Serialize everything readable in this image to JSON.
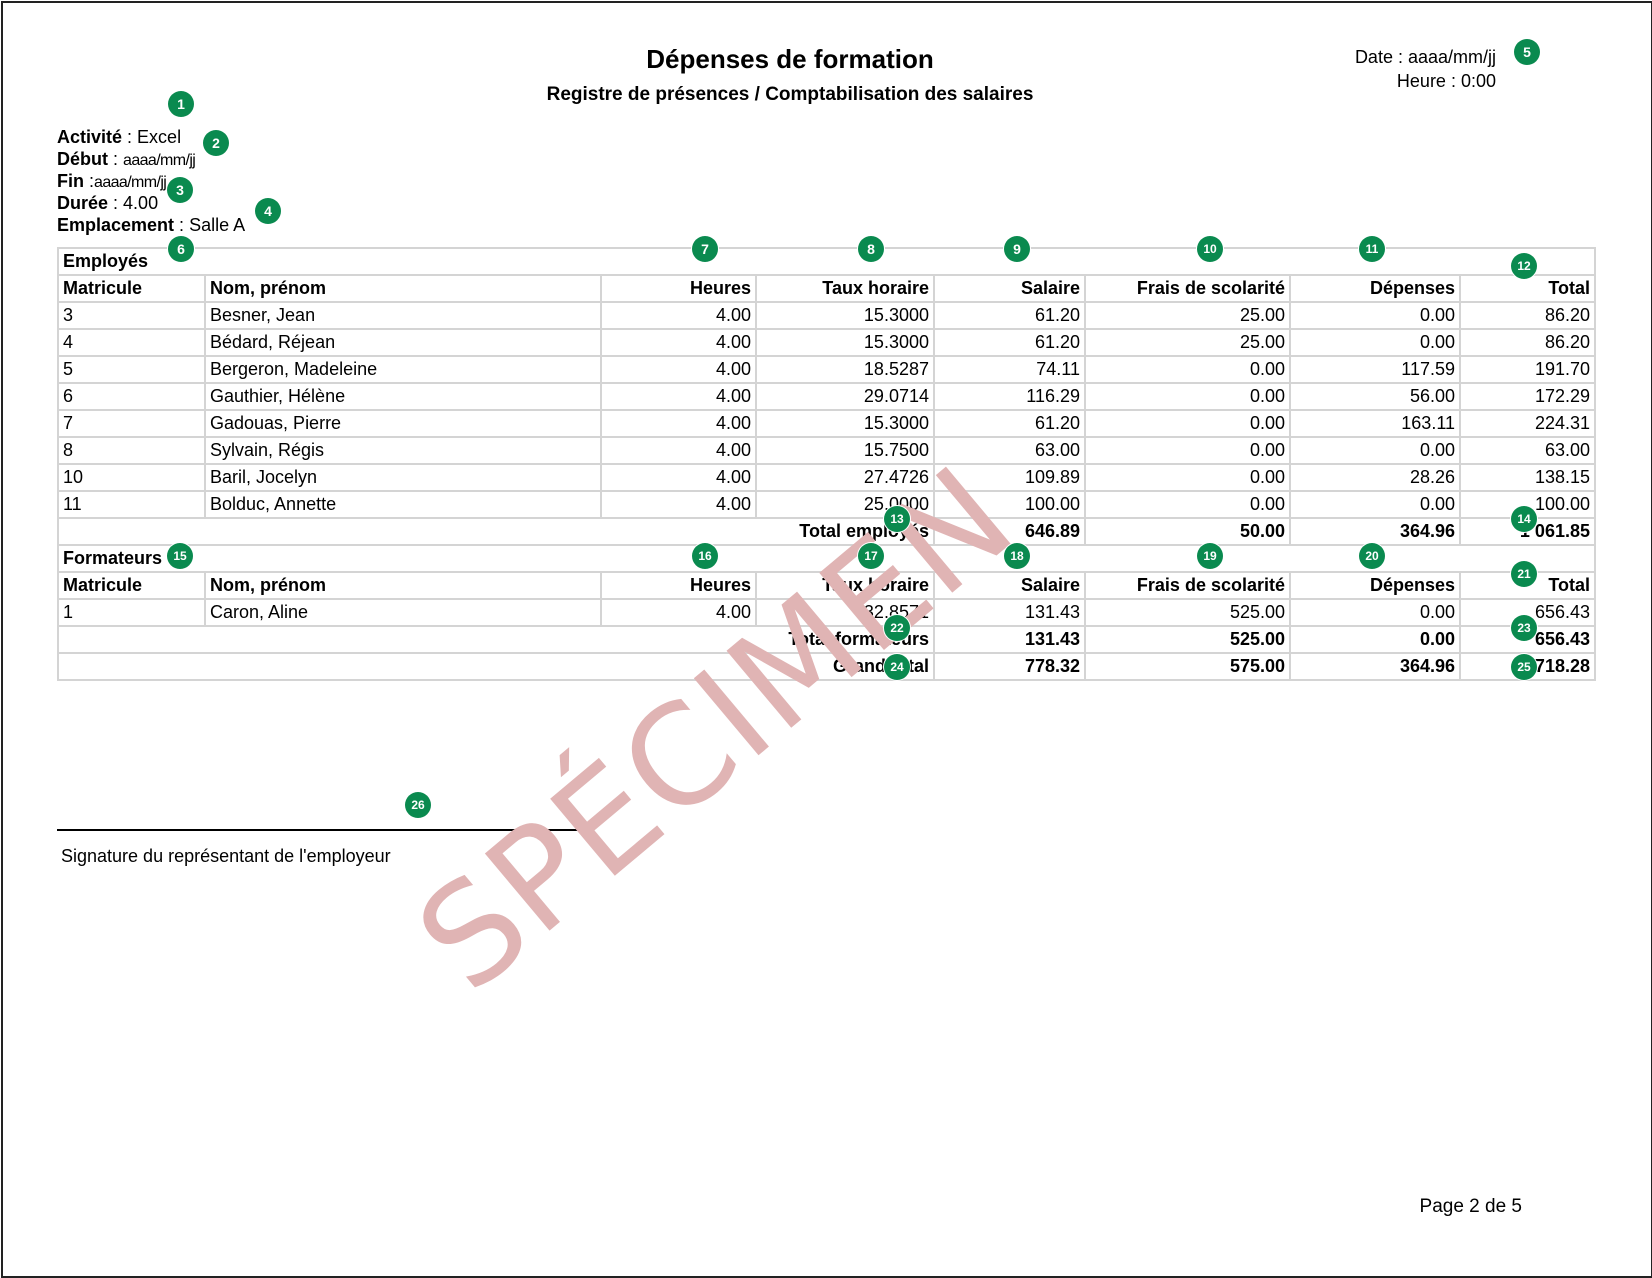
{
  "header": {
    "title": "Dépenses de formation",
    "subtitle": "Registre de présences / Comptabilisation des salaires",
    "date_label": "Date : ",
    "date_value": "aaaa/mm/jj",
    "time_label": "Heure : ",
    "time_value": "0:00"
  },
  "activity": {
    "activite_label": "Activité",
    "activite_value": "Excel",
    "debut_label": "Début",
    "debut_value": "aaaa/mm/jj",
    "fin_label": "Fin",
    "fin_value": "aaaa/mm/jj",
    "duree_label": "Durée",
    "duree_value": "4.00",
    "emplacement_label": "Emplacement",
    "emplacement_value": "Salle A"
  },
  "columns": [
    "Matricule",
    "Nom, prénom",
    "Heures",
    "Taux horaire",
    "Salaire",
    "Frais de scolarité",
    "Dépenses",
    "Total"
  ],
  "employes": {
    "section_label": "Employés",
    "rows": [
      [
        "3",
        "Besner, Jean",
        "4.00",
        "15.3000",
        "61.20",
        "25.00",
        "0.00",
        "86.20"
      ],
      [
        "4",
        "Bédard, Réjean",
        "4.00",
        "15.3000",
        "61.20",
        "25.00",
        "0.00",
        "86.20"
      ],
      [
        "5",
        "Bergeron, Madeleine",
        "4.00",
        "18.5287",
        "74.11",
        "0.00",
        "117.59",
        "191.70"
      ],
      [
        "6",
        "Gauthier, Hélène",
        "4.00",
        "29.0714",
        "116.29",
        "0.00",
        "56.00",
        "172.29"
      ],
      [
        "7",
        "Gadouas, Pierre",
        "4.00",
        "15.3000",
        "61.20",
        "0.00",
        "163.11",
        "224.31"
      ],
      [
        "8",
        "Sylvain, Régis",
        "4.00",
        "15.7500",
        "63.00",
        "0.00",
        "0.00",
        "63.00"
      ],
      [
        "10",
        "Baril, Jocelyn",
        "4.00",
        "27.4726",
        "109.89",
        "0.00",
        "28.26",
        "138.15"
      ],
      [
        "11",
        "Bolduc, Annette",
        "4.00",
        "25.0000",
        "100.00",
        "0.00",
        "0.00",
        "100.00"
      ]
    ],
    "total_label": "Total employés",
    "total": [
      "646.89",
      "50.00",
      "364.96",
      "1 061.85"
    ]
  },
  "formateurs": {
    "section_label": "Formateurs",
    "rows": [
      [
        "1",
        "Caron, Aline",
        "4.00",
        "32.8571",
        "131.43",
        "525.00",
        "0.00",
        "656.43"
      ]
    ],
    "total_label": "Total formateurs",
    "total": [
      "131.43",
      "525.00",
      "0.00",
      "656.43"
    ]
  },
  "grand_total": {
    "label": "Grand total",
    "values": [
      "778.32",
      "575.00",
      "364.96",
      "1 718.28"
    ]
  },
  "signature_label": "Signature du représentant de l'employeur",
  "watermark": "SPÉCIMEN",
  "page_label": "Page 2 de 5",
  "badges": [
    "1",
    "2",
    "3",
    "4",
    "5",
    "6",
    "7",
    "8",
    "9",
    "10",
    "11",
    "12",
    "13",
    "14",
    "15",
    "16",
    "17",
    "18",
    "19",
    "20",
    "21",
    "22",
    "23",
    "24",
    "25",
    "26"
  ],
  "colors": {
    "badge": "#0a8a4f",
    "watermark": "#e0b4b4",
    "grid": "#d4d4d4"
  }
}
